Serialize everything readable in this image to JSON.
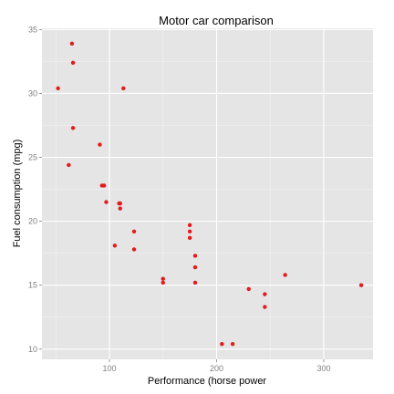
{
  "chart_data": {
    "type": "scatter",
    "title": "Motor car comparison",
    "xlabel": "Performance (horse power",
    "ylabel": "Fuel consumption (mpg)",
    "xlim": [
      37,
      346
    ],
    "ylim": [
      9.2,
      35.1
    ],
    "x_ticks": [
      100,
      200,
      300
    ],
    "y_ticks": [
      10,
      15,
      20,
      25,
      30,
      35
    ],
    "grid": true,
    "legend": "none",
    "point_color": "#e41a1c",
    "series": [
      {
        "points": [
          {
            "x": 52,
            "y": 30.4
          },
          {
            "x": 62,
            "y": 24.4
          },
          {
            "x": 65,
            "y": 33.9
          },
          {
            "x": 66,
            "y": 32.4
          },
          {
            "x": 66,
            "y": 27.3
          },
          {
            "x": 91,
            "y": 26.0
          },
          {
            "x": 93,
            "y": 22.8
          },
          {
            "x": 95,
            "y": 22.8
          },
          {
            "x": 97,
            "y": 21.5
          },
          {
            "x": 105,
            "y": 18.1
          },
          {
            "x": 109,
            "y": 21.4
          },
          {
            "x": 110,
            "y": 21.4
          },
          {
            "x": 110,
            "y": 21.0
          },
          {
            "x": 113,
            "y": 30.4
          },
          {
            "x": 123,
            "y": 19.2
          },
          {
            "x": 123,
            "y": 17.8
          },
          {
            "x": 150,
            "y": 15.5
          },
          {
            "x": 150,
            "y": 15.2
          },
          {
            "x": 175,
            "y": 19.7
          },
          {
            "x": 175,
            "y": 19.2
          },
          {
            "x": 175,
            "y": 18.7
          },
          {
            "x": 180,
            "y": 17.3
          },
          {
            "x": 180,
            "y": 16.4
          },
          {
            "x": 180,
            "y": 15.2
          },
          {
            "x": 205,
            "y": 10.4
          },
          {
            "x": 215,
            "y": 10.4
          },
          {
            "x": 230,
            "y": 14.7
          },
          {
            "x": 245,
            "y": 14.3
          },
          {
            "x": 245,
            "y": 13.3
          },
          {
            "x": 264,
            "y": 15.8
          },
          {
            "x": 335,
            "y": 15.0
          }
        ]
      }
    ]
  }
}
